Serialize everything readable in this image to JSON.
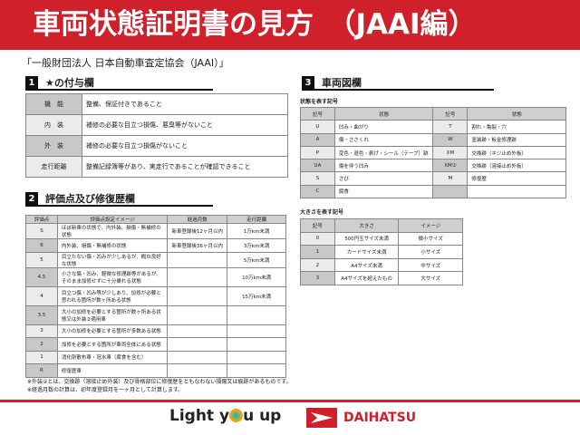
{
  "header": {
    "title": "車両状態証明書の見方　（JAAI編）"
  },
  "subtitle": "「一般財団法人 日本自動車査定協会（JAAI）」",
  "section1": {
    "num": "1",
    "title": "★の付与欄",
    "rows": [
      {
        "label": "機　能",
        "text": "整備、保証付きであること"
      },
      {
        "label": "内　装",
        "text": "補修の必要な目立つ損傷、悪臭等がないこと"
      },
      {
        "label": "外　装",
        "text": "補修の必要な目立つ損傷がないこと"
      },
      {
        "label": "走行距離",
        "text": "整備記録簿等があり、実走行であることが確認できること"
      }
    ]
  },
  "section2": {
    "num": "2",
    "title": "評価点及び修復歴欄",
    "headers": [
      "評価点",
      "評価点設定イメージ",
      "経過月数",
      "走行距離"
    ],
    "rows": [
      [
        "S",
        "ほぼ新車の状態で、内外装、損傷・無補修の状態",
        "新車登録後12ヶ月以内",
        "1万km未満"
      ],
      [
        "6",
        "内外装、損傷・無補修の状態",
        "新車登録後36ヶ月以内",
        "3万km未満"
      ],
      [
        "5",
        "目立たない傷・凹みが少しあるが、概ね良好な状態",
        "",
        "5万km未満"
      ],
      [
        "4.5",
        "小さな傷・凹み、軽微な修理跡等があるが、そのまま加修せずに十分乗れる状態",
        "",
        "10万km未満"
      ],
      [
        "4",
        "目立つ傷・凹み等が少しあり、加修が必要と思われる箇所が数ヶ所ある状態",
        "",
        "15万km未満"
      ],
      [
        "3.5",
        "大小の加修を必要とする箇所が数ヶ所ある状態又は外装②適用車",
        "",
        ""
      ],
      [
        "3",
        "大小の加修を必要とする箇所が多数ある状態",
        "",
        ""
      ],
      [
        "2",
        "加修を必要とする箇所が車両全体にある状態",
        "",
        ""
      ],
      [
        "1",
        "消化剤散布車・冠水車（腐食を含む）",
        "",
        ""
      ],
      [
        "R",
        "修復歴車",
        "",
        ""
      ]
    ]
  },
  "notes": [
    "※外装②とは、交換跡（溶接止め外装）及び骨格部位に修復歴をともなわない損傷又は痕跡があるものです。",
    "※経過月数の計算は、初年度登録月を一ヶ月として計算します。"
  ],
  "section3": {
    "num": "3",
    "title": "車両図欄",
    "state_label": "状態を表す記号",
    "state_headers": [
      "記号",
      "状態",
      "記号",
      "状態"
    ],
    "state_rows": [
      [
        "U",
        "凹み・曲がり",
        "T",
        "割れ・亀裂・穴"
      ],
      [
        "A",
        "傷・ささくれ",
        "W",
        "塗装跡・板金修理跡"
      ],
      [
        "P",
        "変色・退色・剥げ・シール（テープ）跡",
        "XM",
        "交換跡（ネジ止め外板）"
      ],
      [
        "UA",
        "傷を伴う凹み",
        "XM②",
        "交換跡（溶接止め外板）"
      ],
      [
        "S",
        "さび",
        "M",
        "修復歴"
      ],
      [
        "C",
        "腐食",
        "",
        ""
      ]
    ],
    "size_label": "大きさを表す記号",
    "size_headers": [
      "記号",
      "大きさ",
      "イメージ"
    ],
    "size_rows": [
      [
        "0",
        "500円玉サイズ未満",
        "微小サイズ"
      ],
      [
        "1",
        "カードサイズ未満",
        "小サイズ"
      ],
      [
        "2",
        "A4サイズ未満",
        "中サイズ"
      ],
      [
        "3",
        "A4サイズを超えたもの",
        "大サイズ"
      ]
    ]
  },
  "footer": {
    "slogan_pre": "Light y",
    "slogan_post": "u up",
    "brand": "DAIHATSU"
  },
  "colors": {
    "accent": "#d0202b"
  }
}
